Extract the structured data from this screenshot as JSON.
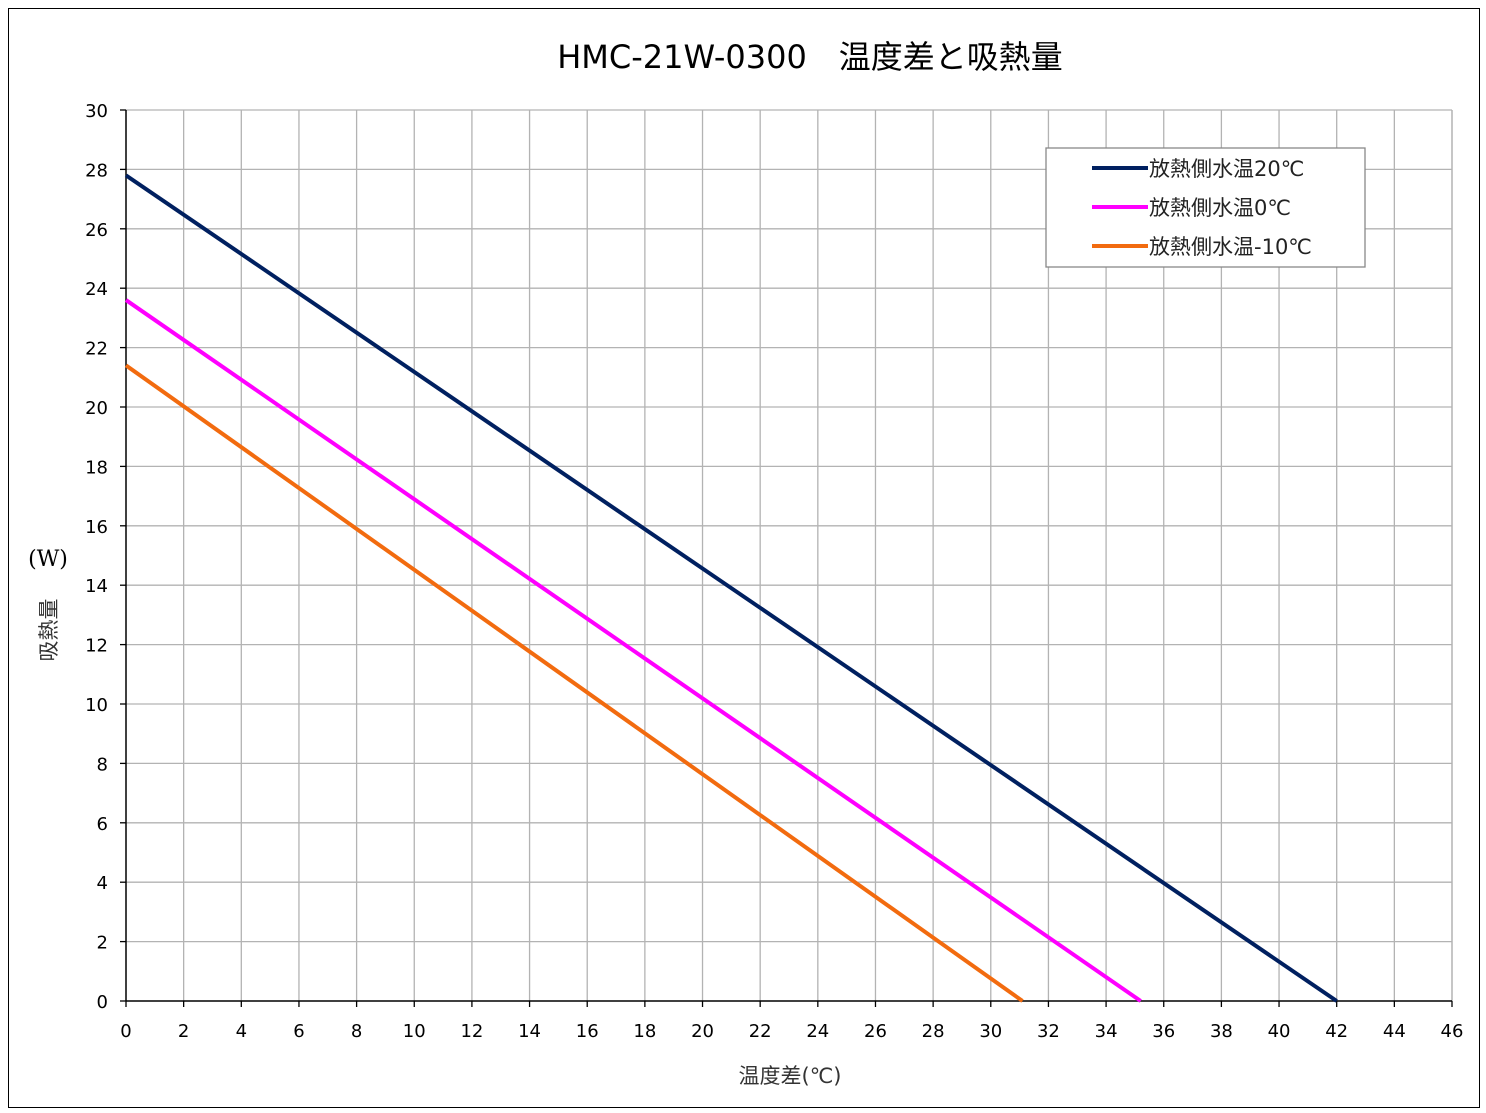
{
  "chart_data": {
    "type": "line",
    "title": "HMC-21W-0300　温度差と吸熱量",
    "xlabel": "温度差(℃)",
    "ylabel": "吸熱量",
    "yunit": "(W)",
    "xlim": [
      0,
      46
    ],
    "ylim": [
      0,
      30
    ],
    "xticks": [
      "0",
      "2",
      "4",
      "6",
      "8",
      "10",
      "12",
      "14",
      "16",
      "18",
      "20",
      "22",
      "24",
      "26",
      "28",
      "30",
      "32",
      "34",
      "36",
      "38",
      "40",
      "42",
      "44",
      "46"
    ],
    "yticks": [
      "0",
      "2",
      "4",
      "6",
      "8",
      "10",
      "12",
      "14",
      "16",
      "18",
      "20",
      "22",
      "24",
      "26",
      "28",
      "30"
    ],
    "grid": true,
    "legend_position": "top-right",
    "series": [
      {
        "name": "放熱側水温20℃",
        "color": "#002060",
        "x": [
          0,
          42.0
        ],
        "y": [
          27.8,
          0
        ]
      },
      {
        "name": "放熱側水温0℃",
        "color": "#FF00FF",
        "x": [
          0,
          35.2
        ],
        "y": [
          23.6,
          0
        ]
      },
      {
        "name": "放熱側水温-10℃",
        "color": "#F26B0F",
        "x": [
          0,
          31.1
        ],
        "y": [
          21.4,
          0
        ]
      }
    ]
  }
}
